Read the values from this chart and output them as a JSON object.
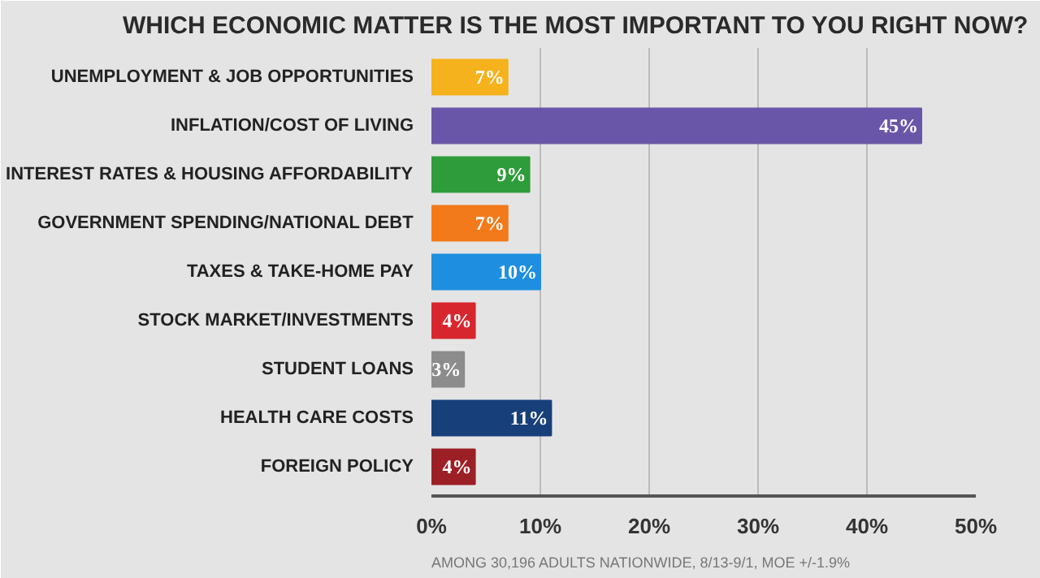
{
  "chart_data": {
    "type": "bar",
    "orientation": "horizontal",
    "title": "WHICH ECONOMIC MATTER IS THE MOST IMPORTANT TO YOU RIGHT NOW?",
    "categories": [
      "UNEMPLOYMENT & JOB OPPORTUNITIES",
      "INFLATION/COST OF LIVING",
      "INTEREST RATES & HOUSING AFFORDABILITY",
      "GOVERNMENT SPENDING/NATIONAL DEBT",
      "TAXES & TAKE-HOME PAY",
      "STOCK MARKET/INVESTMENTS",
      "STUDENT LOANS",
      "HEALTH CARE COSTS",
      "FOREIGN POLICY"
    ],
    "values": [
      7,
      45,
      9,
      7,
      10,
      4,
      3,
      11,
      4
    ],
    "value_labels": [
      "7%",
      "45%",
      "9%",
      "7%",
      "10%",
      "4%",
      "3%",
      "11%",
      "4%"
    ],
    "colors": [
      "#f5b21c",
      "#6a56a8",
      "#2e9c3a",
      "#f27a1a",
      "#1e8fe0",
      "#d8262e",
      "#8c8c8c",
      "#173f7a",
      "#9c1f26"
    ],
    "xlim": [
      0,
      50
    ],
    "xticks": [
      {
        "value": 0,
        "label": "0%"
      },
      {
        "value": 10,
        "label": "10%"
      },
      {
        "value": 20,
        "label": "20%"
      },
      {
        "value": 30,
        "label": "30%"
      },
      {
        "value": 40,
        "label": "40%"
      },
      {
        "value": 50,
        "label": "50%"
      }
    ],
    "grid": "x",
    "annotations": [
      "AMONG 30,196 ADULTS NATIONWIDE, 8/13-9/1, MOE +/-1.9%"
    ]
  }
}
